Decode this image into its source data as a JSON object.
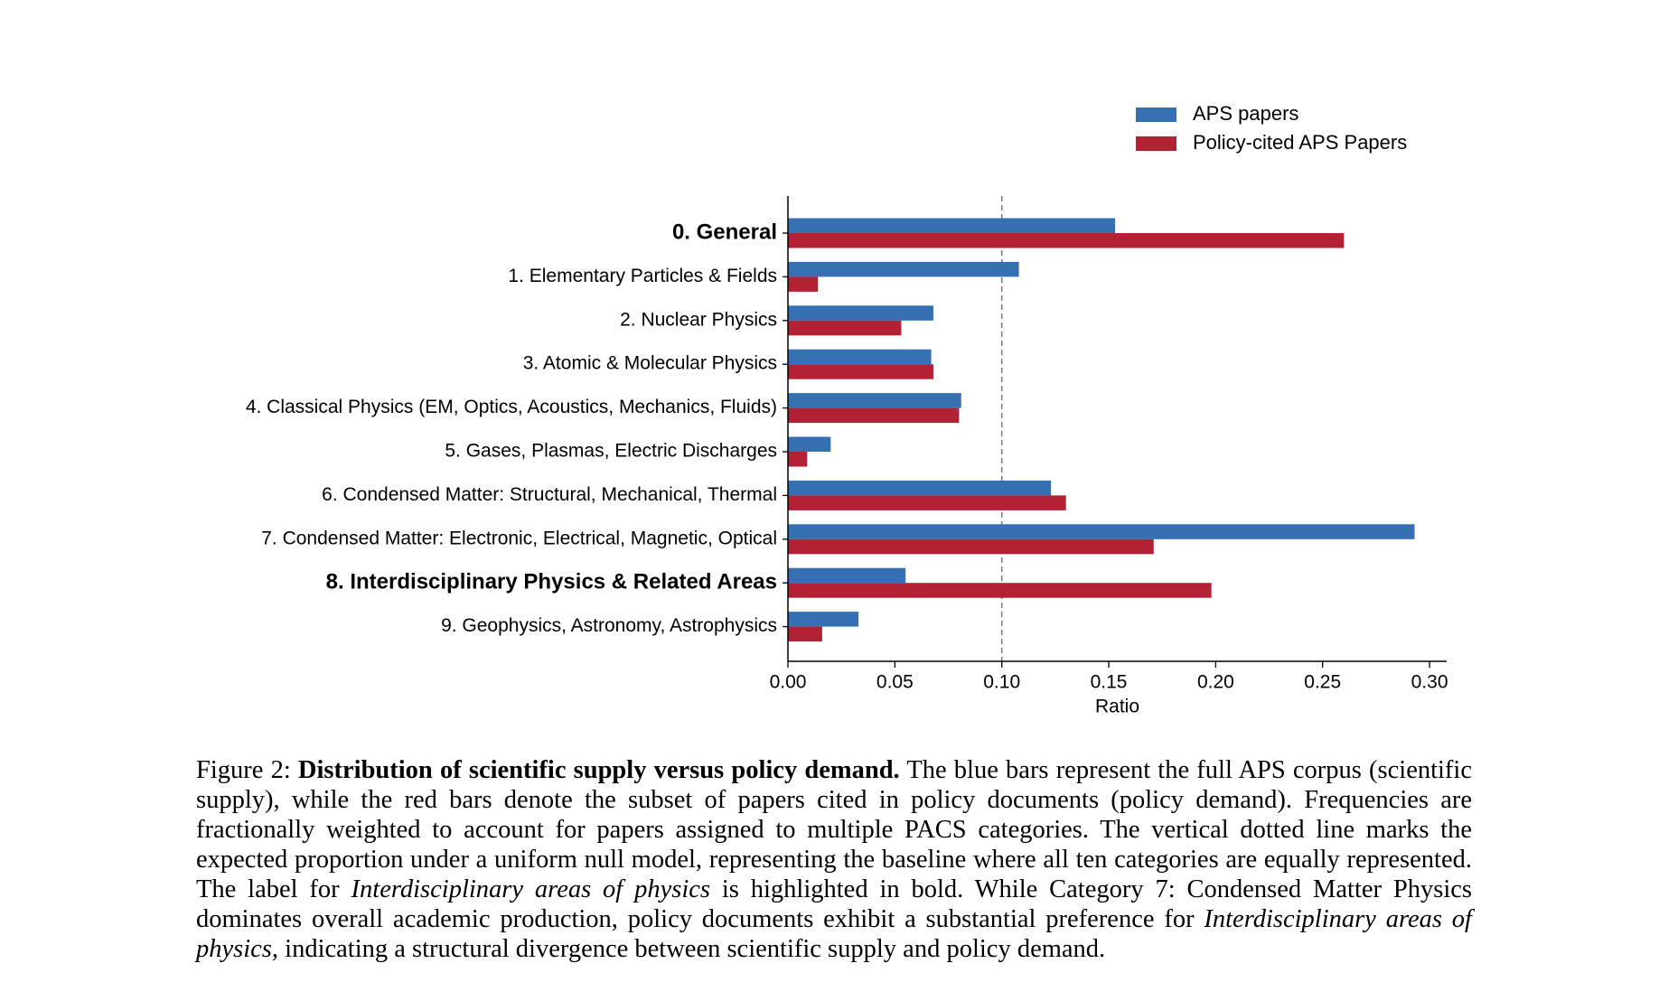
{
  "chart_data": {
    "type": "hbar",
    "categories": [
      "0. General",
      "1. Elementary Particles & Fields",
      "2. Nuclear Physics",
      "3. Atomic & Molecular Physics",
      "4. Classical Physics (EM, Optics, Acoustics, Mechanics, Fluids)",
      "5. Gases, Plasmas, Electric Discharges",
      "6. Condensed Matter: Structural, Mechanical, Thermal",
      "7. Condensed Matter: Electronic, Electrical, Magnetic, Optical",
      "8. Interdisciplinary Physics & Related Areas",
      "9. Geophysics, Astronomy, Astrophysics"
    ],
    "bold_categories": [
      0,
      8
    ],
    "series": [
      {
        "name": "APS papers",
        "color": "#3670b3",
        "values": [
          0.153,
          0.108,
          0.068,
          0.067,
          0.081,
          0.02,
          0.123,
          0.293,
          0.055,
          0.033
        ]
      },
      {
        "name": "Policy-cited APS Papers",
        "color": "#b22234",
        "values": [
          0.26,
          0.014,
          0.053,
          0.068,
          0.08,
          0.009,
          0.13,
          0.171,
          0.198,
          0.016
        ]
      }
    ],
    "xlabel": "Ratio",
    "xlim": [
      0,
      0.308
    ],
    "xticks": [
      {
        "value": 0,
        "label": "0.00"
      },
      {
        "value": 0.05,
        "label": "0.05"
      },
      {
        "value": 0.1,
        "label": "0.10"
      },
      {
        "value": 0.15,
        "label": "0.15"
      },
      {
        "value": 0.2,
        "label": "0.20"
      },
      {
        "value": 0.25,
        "label": "0.25"
      },
      {
        "value": 0.3,
        "label": "0.30"
      }
    ],
    "reference_line": 0.1,
    "legend": "upper right"
  },
  "caption": [
    {
      "text": "Figure 2: ",
      "style": "normal"
    },
    {
      "text": "Distribution of scientific supply versus policy demand.",
      "style": "bold"
    },
    {
      "text": " The blue bars represent the full APS corpus (scientific supply), while the red bars denote the subset of papers cited in policy documents (policy demand). Frequencies are fractionally weighted to account for papers assigned to multiple PACS categories. The vertical dotted line marks the expected proportion under a uniform null model, representing the baseline where all ten categories are equally represented. The label for ",
      "style": "normal"
    },
    {
      "text": "Interdisciplinary areas of physics",
      "style": "italic"
    },
    {
      "text": " is highlighted in bold. While Category 7: Condensed Matter Physics dominates overall academic production, policy documents exhibit a substantial preference for ",
      "style": "normal"
    },
    {
      "text": "Interdisciplinary areas of physics",
      "style": "italic"
    },
    {
      "text": ", indicating a structural divergence between scientific supply and policy demand.",
      "style": "normal"
    }
  ]
}
